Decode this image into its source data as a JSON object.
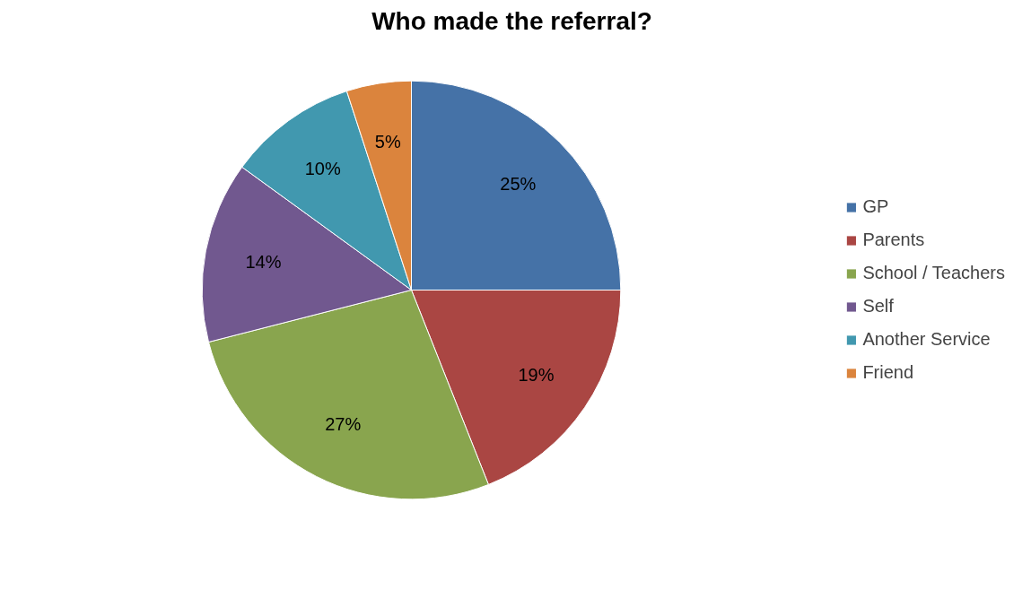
{
  "chart_data": {
    "type": "pie",
    "title": "Who made the referral?",
    "categories": [
      "GP",
      "Parents",
      "School / Teachers",
      "Self",
      "Another Service",
      "Friend"
    ],
    "values": [
      25,
      19,
      27,
      14,
      10,
      5
    ],
    "colors": [
      "#4572a7",
      "#aa4643",
      "#89a54e",
      "#71588f",
      "#4198af",
      "#db843d"
    ],
    "value_labels": [
      "25%",
      "19%",
      "27%",
      "14%",
      "10%",
      "5%"
    ],
    "legend": "right"
  }
}
